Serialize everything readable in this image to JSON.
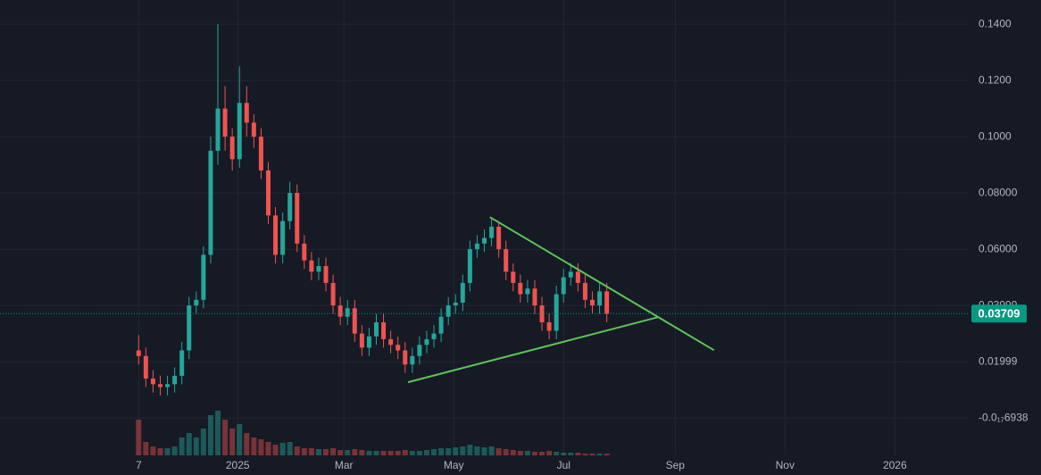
{
  "chart_data": {
    "type": "candlestick",
    "x": [
      0,
      4,
      8,
      12,
      16,
      20,
      24,
      28,
      32,
      36,
      40,
      44,
      48,
      52,
      56,
      60,
      64,
      68,
      72,
      76,
      80,
      84,
      88,
      92,
      96,
      100,
      104,
      108,
      112,
      116,
      120,
      124,
      128,
      132,
      136,
      140,
      144,
      148,
      152,
      156,
      160,
      164,
      168,
      172,
      176,
      180,
      184,
      188,
      192,
      196,
      200,
      204,
      208,
      212,
      216,
      220,
      224,
      228,
      232,
      236,
      240,
      244,
      248,
      252,
      256,
      260
    ],
    "open": [
      0.024,
      0.022,
      0.014,
      0.012,
      0.011,
      0.012,
      0.015,
      0.024,
      0.04,
      0.042,
      0.058,
      0.095,
      0.11,
      0.1,
      0.092,
      0.112,
      0.105,
      0.1,
      0.088,
      0.072,
      0.058,
      0.07,
      0.08,
      0.062,
      0.056,
      0.052,
      0.054,
      0.048,
      0.04,
      0.036,
      0.039,
      0.03,
      0.025,
      0.029,
      0.034,
      0.028,
      0.026,
      0.024,
      0.019,
      0.022,
      0.026,
      0.028,
      0.03,
      0.036,
      0.04,
      0.041,
      0.048,
      0.06,
      0.062,
      0.064,
      0.068,
      0.06,
      0.052,
      0.048,
      0.044,
      0.046,
      0.04,
      0.034,
      0.031,
      0.044,
      0.05,
      0.052,
      0.048,
      0.042,
      0.04,
      0.045
    ],
    "high": [
      0.0295,
      0.025,
      0.017,
      0.015,
      0.015,
      0.018,
      0.027,
      0.043,
      0.045,
      0.061,
      0.1,
      0.14,
      0.118,
      0.103,
      0.125,
      0.118,
      0.108,
      0.103,
      0.091,
      0.075,
      0.073,
      0.084,
      0.083,
      0.065,
      0.059,
      0.057,
      0.057,
      0.051,
      0.043,
      0.042,
      0.042,
      0.033,
      0.032,
      0.037,
      0.037,
      0.031,
      0.029,
      0.027,
      0.025,
      0.029,
      0.031,
      0.033,
      0.039,
      0.043,
      0.044,
      0.051,
      0.063,
      0.065,
      0.067,
      0.071,
      0.07,
      0.063,
      0.055,
      0.051,
      0.049,
      0.049,
      0.043,
      0.037,
      0.047,
      0.053,
      0.055,
      0.055,
      0.051,
      0.045,
      0.048,
      0.048
    ],
    "low": [
      0.019,
      0.011,
      0.009,
      0.008,
      0.008,
      0.009,
      0.012,
      0.021,
      0.037,
      0.039,
      0.055,
      0.09,
      0.095,
      0.088,
      0.089,
      0.1,
      0.096,
      0.085,
      0.069,
      0.055,
      0.055,
      0.067,
      0.059,
      0.053,
      0.049,
      0.049,
      0.045,
      0.037,
      0.033,
      0.033,
      0.027,
      0.022,
      0.022,
      0.026,
      0.025,
      0.023,
      0.021,
      0.016,
      0.016,
      0.019,
      0.023,
      0.025,
      0.027,
      0.033,
      0.037,
      0.038,
      0.045,
      0.057,
      0.059,
      0.061,
      0.057,
      0.049,
      0.045,
      0.041,
      0.041,
      0.037,
      0.031,
      0.028,
      0.028,
      0.041,
      0.047,
      0.045,
      0.039,
      0.037,
      0.037,
      0.034
    ],
    "close": [
      0.022,
      0.014,
      0.012,
      0.011,
      0.012,
      0.015,
      0.024,
      0.04,
      0.042,
      0.058,
      0.095,
      0.11,
      0.1,
      0.092,
      0.112,
      0.105,
      0.1,
      0.088,
      0.072,
      0.058,
      0.07,
      0.08,
      0.062,
      0.056,
      0.052,
      0.054,
      0.048,
      0.04,
      0.036,
      0.039,
      0.03,
      0.025,
      0.029,
      0.034,
      0.028,
      0.026,
      0.024,
      0.019,
      0.022,
      0.026,
      0.028,
      0.03,
      0.036,
      0.04,
      0.041,
      0.048,
      0.06,
      0.062,
      0.064,
      0.068,
      0.06,
      0.052,
      0.048,
      0.044,
      0.046,
      0.04,
      0.034,
      0.031,
      0.044,
      0.05,
      0.052,
      0.048,
      0.042,
      0.04,
      0.045,
      0.037
    ],
    "volume": [
      40,
      15,
      10,
      8,
      8,
      10,
      20,
      25,
      20,
      30,
      45,
      50,
      40,
      30,
      35,
      25,
      20,
      18,
      15,
      12,
      14,
      15,
      10,
      8,
      8,
      7,
      7,
      8,
      6,
      6,
      7,
      6,
      5,
      5,
      5,
      5,
      5,
      6,
      5,
      5,
      6,
      7,
      8,
      8,
      9,
      10,
      12,
      10,
      9,
      10,
      8,
      7,
      6,
      5,
      5,
      4,
      4,
      5,
      4,
      3,
      3,
      3,
      2,
      2,
      2,
      2
    ],
    "up_color": "#26a69a",
    "down_color": "#ef5350",
    "xlim": [
      -77,
      461
    ],
    "xticks": [
      {
        "value": 0,
        "label": "7"
      },
      {
        "value": 55,
        "label": "2025"
      },
      {
        "value": 114,
        "label": "Mar"
      },
      {
        "value": 175,
        "label": "May"
      },
      {
        "value": 236,
        "label": "Jul"
      },
      {
        "value": 298,
        "label": "Sep"
      },
      {
        "value": 359,
        "label": "Nov"
      },
      {
        "value": 420,
        "label": "2026"
      }
    ],
    "ylim": [
      -0.0133,
      0.1486
    ],
    "yticks": [
      {
        "value": 0.14,
        "label": "0.1400"
      },
      {
        "value": 0.12,
        "label": "0.1200"
      },
      {
        "value": 0.1,
        "label": "0.1000"
      },
      {
        "value": 0.08,
        "label": "0.08000"
      },
      {
        "value": 0.06,
        "label": "0.06000"
      },
      {
        "value": 0.04,
        "label": "0.03999"
      },
      {
        "value": 0.02,
        "label": "0.01999"
      },
      {
        "value": 0,
        "label": "-0.0₁₇6938"
      }
    ],
    "grid": true,
    "last_price": {
      "value": 0.03709,
      "label": "0.03709",
      "color": "#089981"
    },
    "trendlines": [
      {
        "points": [
          [
            149.6,
            0.0127
          ],
          [
            288.3,
            0.0358
          ]
        ],
        "color": "#5fc15a"
      },
      {
        "points": [
          [
            195.1,
            0.0714
          ],
          [
            319.5,
            0.0241
          ]
        ],
        "color": "#5fc15a"
      }
    ]
  }
}
